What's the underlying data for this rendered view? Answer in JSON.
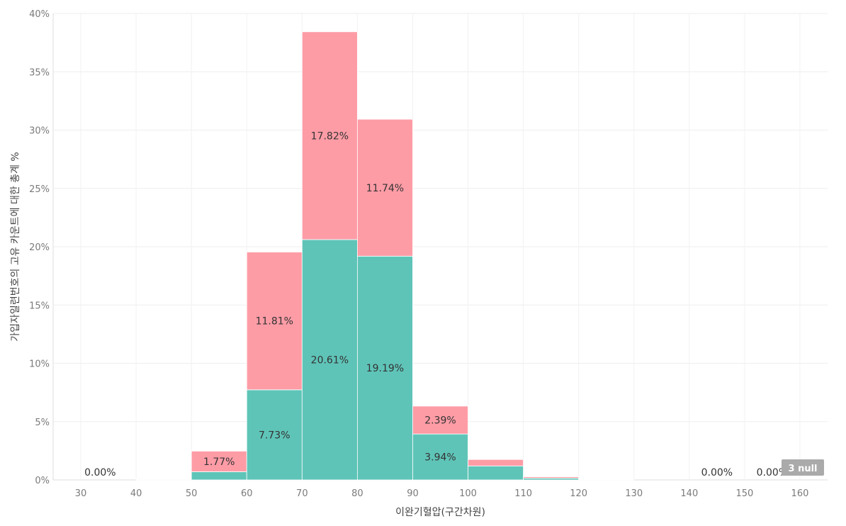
{
  "chart_data": {
    "type": "bar",
    "title": "",
    "xlabel": "이완기혈압(구간차원)",
    "ylabel": "가입자일련번호의 고유 카운트에 대한 총계 %",
    "xlim": [
      25,
      165
    ],
    "ylim": [
      0,
      40
    ],
    "x_ticks": [
      30,
      40,
      50,
      60,
      70,
      80,
      90,
      100,
      110,
      120,
      130,
      140,
      150,
      160
    ],
    "y_ticks": [
      "0%",
      "5%",
      "10%",
      "15%",
      "20%",
      "25%",
      "30%",
      "35%",
      "40%"
    ],
    "y_tick_values": [
      0,
      5,
      10,
      15,
      20,
      25,
      30,
      35,
      40
    ],
    "grid": true,
    "bin_width": 10,
    "bins": [
      40,
      50,
      60,
      70,
      80,
      90,
      100,
      110,
      120
    ],
    "series": [
      {
        "color": "#5fc4b8",
        "values": [
          0.05,
          0.7,
          7.73,
          20.61,
          19.19,
          3.94,
          1.2,
          0.15,
          0.02
        ]
      },
      {
        "color": "#fe9ca6",
        "values": [
          0.03,
          1.77,
          11.81,
          17.82,
          11.74,
          2.39,
          0.55,
          0.12,
          0.01
        ]
      }
    ],
    "annotations": [
      {
        "text": "0.00%",
        "x": 33.5,
        "y": 0
      },
      {
        "text": "1.77%",
        "series": 1,
        "bin": 1
      },
      {
        "text": "7.73%",
        "series": 0,
        "bin": 2
      },
      {
        "text": "11.81%",
        "series": 1,
        "bin": 2
      },
      {
        "text": "20.61%",
        "series": 0,
        "bin": 3
      },
      {
        "text": "17.82%",
        "series": 1,
        "bin": 3
      },
      {
        "text": "19.19%",
        "series": 0,
        "bin": 4
      },
      {
        "text": "11.74%",
        "series": 1,
        "bin": 4
      },
      {
        "text": "3.94%",
        "series": 0,
        "bin": 5
      },
      {
        "text": "2.39%",
        "series": 1,
        "bin": 5
      },
      {
        "text": "0.00%",
        "x": 145,
        "y": 0
      },
      {
        "text": "0.00%",
        "x": 155,
        "y": 0
      }
    ],
    "null_badge": "3 null"
  }
}
